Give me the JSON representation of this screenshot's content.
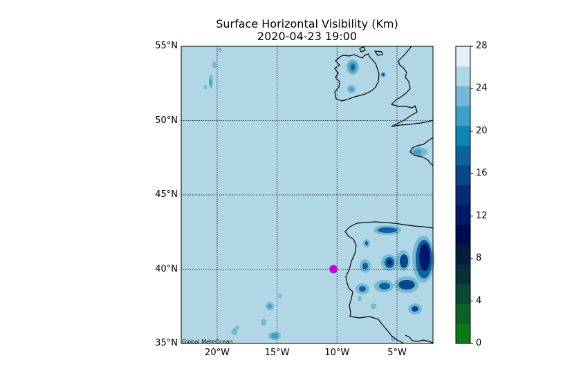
{
  "title": "Surface Horizontal Visibility (Km)",
  "subtitle": "2020-04-23 19:00",
  "credit": "Global MeteOcean",
  "map": {
    "lon_range": [
      -23,
      -2
    ],
    "lat_range": [
      35,
      55
    ],
    "lon_ticks": [
      {
        "lon": -20,
        "label": "20°W"
      },
      {
        "lon": -15,
        "label": "15°W"
      },
      {
        "lon": -10,
        "label": "10°W"
      },
      {
        "lon": -5,
        "label": "5°W"
      }
    ],
    "lat_ticks": [
      {
        "lat": 55,
        "label": "55°N"
      },
      {
        "lat": 50,
        "label": "50°N"
      },
      {
        "lat": 45,
        "label": "45°N"
      },
      {
        "lat": 40,
        "label": "40°N"
      },
      {
        "lat": 35,
        "label": "35°N"
      }
    ],
    "background_color": "#b1d7e6",
    "marker": {
      "lon": -10.3,
      "lat": 40.0,
      "color": "#cc00cc"
    },
    "gridlines": "dotted"
  },
  "colorbar": {
    "range": [
      0,
      28
    ],
    "ticks": [
      "0",
      "4",
      "8",
      "12",
      "16",
      "20",
      "24",
      "28"
    ],
    "colors": [
      "#0a7a14",
      "#0b6224",
      "#084a33",
      "#073038",
      "#061c3c",
      "#020950",
      "#031868",
      "#032a7b",
      "#07478e",
      "#0a63a0",
      "#0b85b5",
      "#3ea0c5",
      "#76b8d4",
      "#b1d7e6",
      "#e4f2f8"
    ]
  }
}
